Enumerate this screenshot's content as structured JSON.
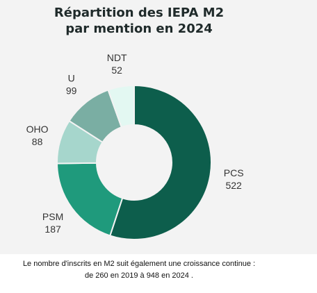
{
  "chart_data": {
    "type": "pie",
    "style": "donut",
    "title_line1": "Répartition des IEPA M2",
    "title_line2": "par mention en 2024",
    "slices": [
      {
        "label": "PCS",
        "value": 522,
        "color": "#0d5e4c"
      },
      {
        "label": "PSM",
        "value": 187,
        "color": "#1f9a7c"
      },
      {
        "label": "OHO",
        "value": 88,
        "color": "#a6d6cc"
      },
      {
        "label": "U",
        "value": 99,
        "color": "#7aaea3"
      },
      {
        "label": "NDT",
        "value": 52,
        "color": "#e3f8f2"
      }
    ]
  },
  "footnote": {
    "line1": "Le nombre d'inscrits en M2 suit également une croissance continue :",
    "line2": "de 260 en 2019 à 948 en 2024 ."
  }
}
